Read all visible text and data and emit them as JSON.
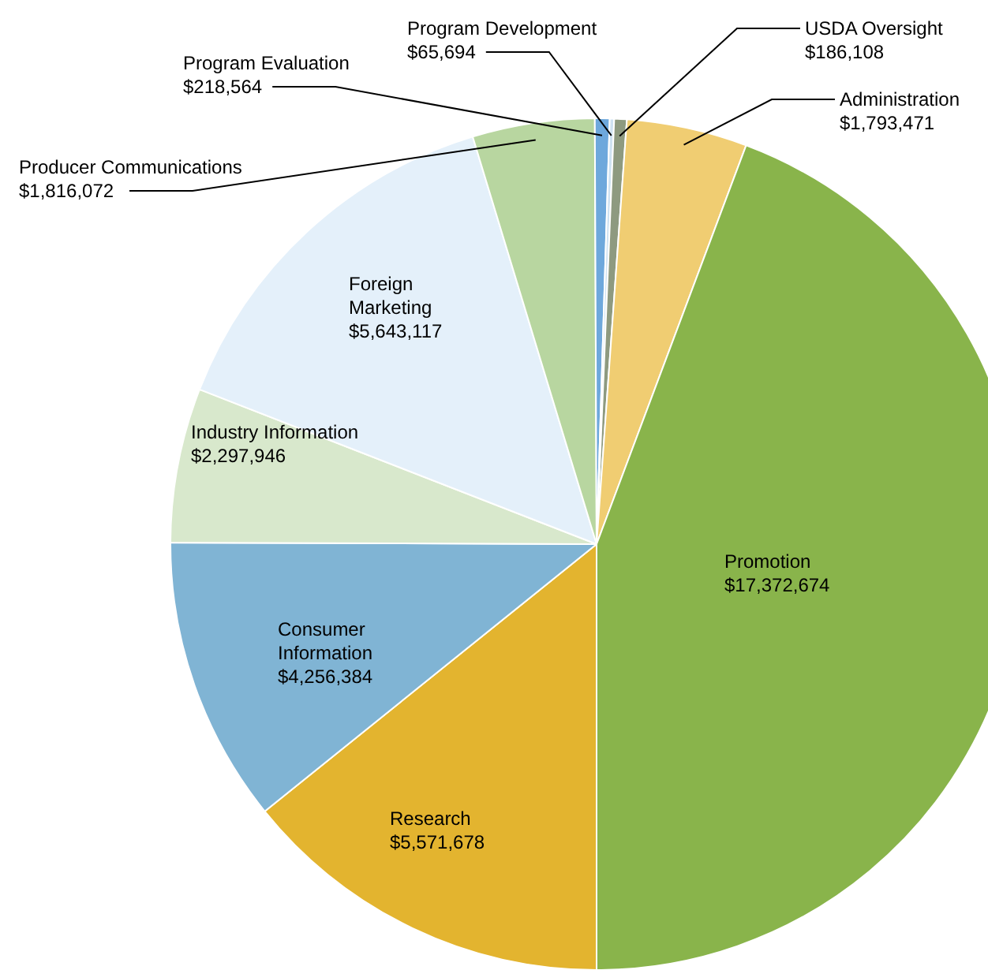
{
  "chart_data": {
    "type": "pie",
    "categories": [
      "Research",
      "Consumer Information",
      "Industry Information",
      "Foreign Marketing",
      "Producer Communications",
      "Program Evaluation",
      "Program Development",
      "USDA Oversight",
      "Administration",
      "Promotion"
    ],
    "values": [
      5571678,
      4256384,
      2297946,
      5643117,
      1816072,
      218564,
      65694,
      186108,
      1793471,
      17372674
    ],
    "value_labels": [
      "$5,571,678",
      "$4,256,384",
      "$2,297,946",
      "$5,643,117",
      "$1,816,072",
      "$218,564",
      "$65,694",
      "$186,108",
      "$1,793,471",
      "$17,372,674"
    ],
    "colors": [
      "#e3b42f",
      "#80b4d4",
      "#d8e8cc",
      "#e4f0fa",
      "#b8d6a0",
      "#6ea8dc",
      "#cfe2f2",
      "#8e9a80",
      "#f0cd72",
      "#89b44b"
    ]
  }
}
